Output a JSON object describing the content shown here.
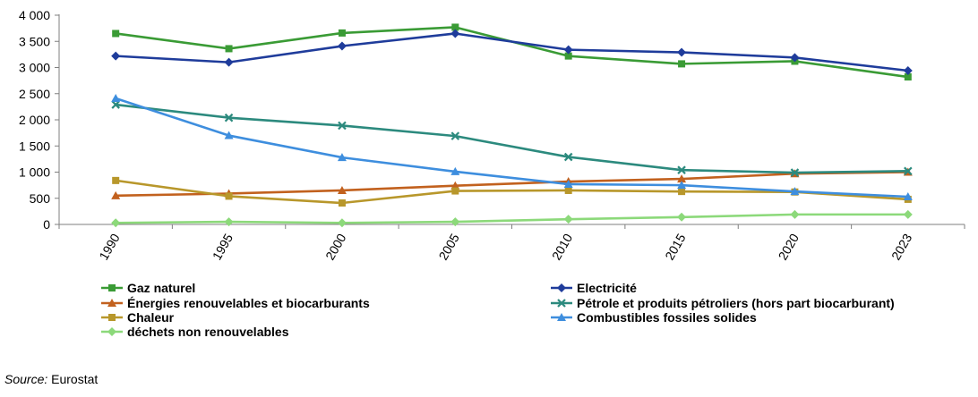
{
  "chart_data": {
    "type": "line",
    "title": "",
    "xlabel": "",
    "ylabel": "",
    "categories": [
      "1990",
      "1995",
      "2000",
      "2005",
      "2010",
      "2015",
      "2020",
      "2023"
    ],
    "y_ticks": [
      "0",
      "500",
      "1 000",
      "1 500",
      "2 000",
      "2 500",
      "3 000",
      "3 500",
      "4 000"
    ],
    "ylim": [
      0,
      4000
    ],
    "grid": false,
    "legend_position": "bottom",
    "series": [
      {
        "name": "Gaz naturel",
        "color": "#3A9B35",
        "marker": "square",
        "values": [
          3650,
          3360,
          3660,
          3770,
          3220,
          3070,
          3120,
          2820
        ]
      },
      {
        "name": "Electricité",
        "color": "#1F3C9B",
        "marker": "diamond",
        "values": [
          3220,
          3100,
          3410,
          3650,
          3340,
          3290,
          3190,
          2940
        ]
      },
      {
        "name": "Énergies renouvelables et biocarburants",
        "color": "#C2611E",
        "marker": "triangle",
        "values": [
          550,
          590,
          650,
          740,
          820,
          870,
          970,
          1000
        ]
      },
      {
        "name": "Pétrole et produits pétroliers (hors part biocarburant)",
        "color": "#2C8A7E",
        "marker": "x",
        "values": [
          2290,
          2040,
          1890,
          1690,
          1290,
          1040,
          990,
          1020
        ]
      },
      {
        "name": "Chaleur",
        "color": "#B8972B",
        "marker": "square",
        "values": [
          840,
          540,
          410,
          640,
          650,
          630,
          620,
          480
        ]
      },
      {
        "name": "Combustibles fossiles solides",
        "color": "#3E8EDE",
        "marker": "triangle",
        "values": [
          2410,
          1700,
          1280,
          1010,
          770,
          750,
          630,
          530
        ]
      },
      {
        "name": "déchets non renouvelables",
        "color": "#8CD97A",
        "marker": "diamond",
        "values": [
          30,
          50,
          30,
          50,
          100,
          140,
          190,
          190
        ]
      }
    ]
  },
  "source": {
    "label": "Source:",
    "text": " Eurostat"
  }
}
